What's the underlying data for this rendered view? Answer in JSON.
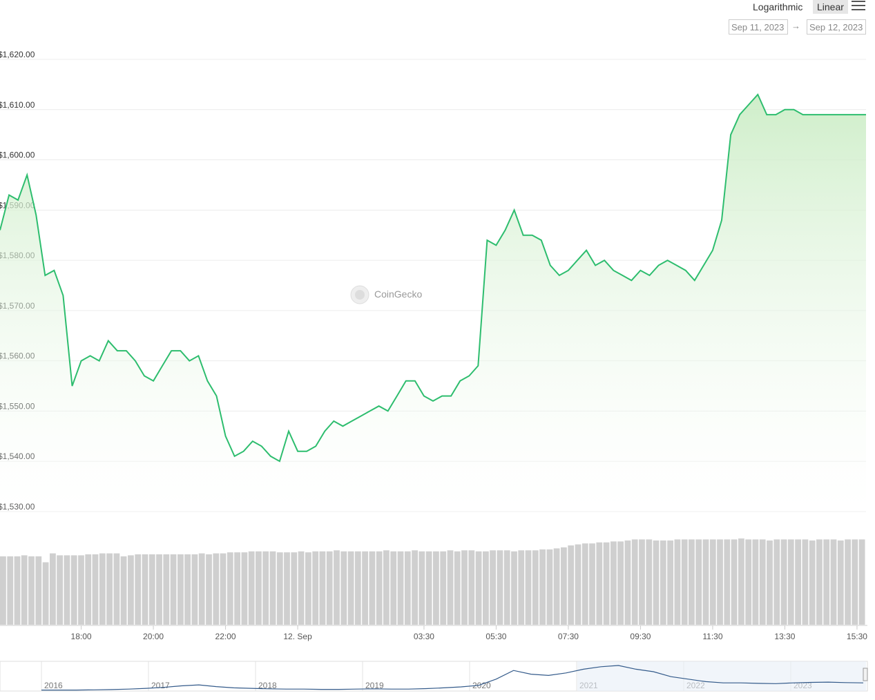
{
  "toolbar": {
    "log_label": "Logarithmic",
    "linear_label": "Linear",
    "date_from": "Sep 11, 2023",
    "date_to": "Sep 12, 2023",
    "arrow": "→"
  },
  "watermark": "CoinGecko",
  "colors": {
    "line": "#2dbd6e",
    "fill": "#c9ecc3",
    "volume": "#cfcfcf",
    "navigator": "#335a8a"
  },
  "chart_data": {
    "type": "line",
    "ylim": [
      1530,
      1620
    ],
    "y_ticks": [
      "$1,620.00",
      "$1,610.00",
      "$1,600.00",
      "$1,590.00",
      "$1,580.00",
      "$1,570.00",
      "$1,560.00",
      "$1,550.00",
      "$1,540.00",
      "$1,530.00"
    ],
    "y_tick_values": [
      1620,
      1610,
      1600,
      1590,
      1580,
      1570,
      1560,
      1550,
      1540,
      1530
    ],
    "x_ticks": [
      "18:00",
      "20:00",
      "22:00",
      "12. Sep",
      "03:30",
      "05:30",
      "07:30",
      "09:30",
      "11:30",
      "13:30",
      "15:30"
    ],
    "x_tick_hours": [
      18,
      20,
      22,
      24,
      27.5,
      29.5,
      31.5,
      33.5,
      35.5,
      37.5,
      39.5
    ],
    "x_range_hours": [
      15.75,
      39.75
    ],
    "series": [
      {
        "x": [
          15.75,
          16.0,
          16.25,
          16.5,
          16.75,
          17.0,
          17.25,
          17.5,
          17.75,
          18.0,
          18.25,
          18.5,
          18.75,
          19.0,
          19.25,
          19.5,
          19.75,
          20.0,
          20.25,
          20.5,
          20.75,
          21.0,
          21.25,
          21.5,
          21.75,
          22.0,
          22.25,
          22.5,
          22.75,
          23.0,
          23.25,
          23.5,
          23.75,
          24.0,
          24.25,
          24.5,
          24.75,
          25.0,
          25.25,
          25.5,
          25.75,
          26.0,
          26.25,
          26.5,
          26.75,
          27.0,
          27.25,
          27.5,
          27.75,
          28.0,
          28.25,
          28.5,
          28.75,
          29.0,
          29.25,
          29.5,
          29.75,
          30.0,
          30.25,
          30.5,
          30.75,
          31.0,
          31.25,
          31.5,
          31.75,
          32.0,
          32.25,
          32.5,
          32.75,
          33.0,
          33.25,
          33.5,
          33.75,
          34.0,
          34.25,
          34.5,
          34.75,
          35.0,
          35.25,
          35.5,
          35.75,
          36.0,
          36.25,
          36.5,
          36.75,
          37.0,
          37.25,
          37.5,
          37.75,
          38.0,
          38.25,
          38.5,
          38.75,
          39.0,
          39.25,
          39.5,
          39.75
        ],
        "values": [
          1586,
          1593,
          1592,
          1597,
          1589,
          1577,
          1578,
          1573,
          1555,
          1560,
          1561,
          1560,
          1564,
          1562,
          1562,
          1560,
          1557,
          1556,
          1559,
          1562,
          1562,
          1560,
          1561,
          1556,
          1553,
          1545,
          1541,
          1542,
          1544,
          1543,
          1541,
          1540,
          1546,
          1542,
          1542,
          1543,
          1546,
          1548,
          1547,
          1548,
          1549,
          1550,
          1551,
          1550,
          1553,
          1556,
          1556,
          1553,
          1552,
          1553,
          1553,
          1556,
          1557,
          1559,
          1584,
          1583,
          1586,
          1590,
          1585,
          1585,
          1584,
          1579,
          1577,
          1578,
          1580,
          1582,
          1579,
          1580,
          1578,
          1577,
          1576,
          1578,
          1577,
          1579,
          1580,
          1579,
          1578,
          1576,
          1579,
          1582,
          1588,
          1605,
          1609,
          1611,
          1613,
          1609,
          1609,
          1610,
          1610,
          1609,
          1609,
          1609,
          1609,
          1609,
          1609,
          1609,
          1609
        ]
      }
    ],
    "volume": [
      69,
      69,
      69,
      70,
      69,
      69,
      63,
      72,
      70,
      70,
      70,
      70,
      71,
      71,
      72,
      72,
      72,
      69,
      70,
      71,
      71,
      71,
      71,
      71,
      71,
      71,
      71,
      71,
      72,
      71,
      72,
      72,
      73,
      73,
      73,
      74,
      74,
      74,
      74,
      73,
      73,
      73,
      74,
      73,
      74,
      74,
      74,
      75,
      74,
      74,
      74,
      74,
      74,
      74,
      75,
      74,
      74,
      74,
      75,
      74,
      74,
      74,
      74,
      75,
      74,
      75,
      75,
      74,
      74,
      75,
      75,
      75,
      74,
      75,
      75,
      75,
      76,
      76,
      77,
      78,
      80,
      81,
      82,
      82,
      83,
      83,
      84,
      84,
      85,
      86,
      86,
      86,
      85,
      85,
      85,
      86,
      86,
      86,
      86,
      86,
      86,
      86,
      86,
      86,
      87,
      86,
      86,
      86,
      85,
      86,
      86,
      86,
      86,
      86,
      85,
      86,
      86,
      86,
      85,
      86,
      86,
      86
    ],
    "navigator": {
      "years": [
        "2016",
        "2017",
        "2018",
        "2019",
        "2020",
        "2021",
        "2022",
        "2023"
      ],
      "values": [
        0.01,
        0.01,
        0.01,
        0.02,
        0.03,
        0.05,
        0.08,
        0.12,
        0.18,
        0.22,
        0.15,
        0.1,
        0.08,
        0.06,
        0.05,
        0.05,
        0.04,
        0.04,
        0.05,
        0.06,
        0.05,
        0.05,
        0.07,
        0.1,
        0.14,
        0.2,
        0.45,
        0.8,
        0.65,
        0.6,
        0.7,
        0.85,
        0.95,
        1.0,
        0.85,
        0.75,
        0.55,
        0.45,
        0.35,
        0.3,
        0.3,
        0.28,
        0.27,
        0.3,
        0.32,
        0.33,
        0.31,
        0.3
      ]
    }
  }
}
